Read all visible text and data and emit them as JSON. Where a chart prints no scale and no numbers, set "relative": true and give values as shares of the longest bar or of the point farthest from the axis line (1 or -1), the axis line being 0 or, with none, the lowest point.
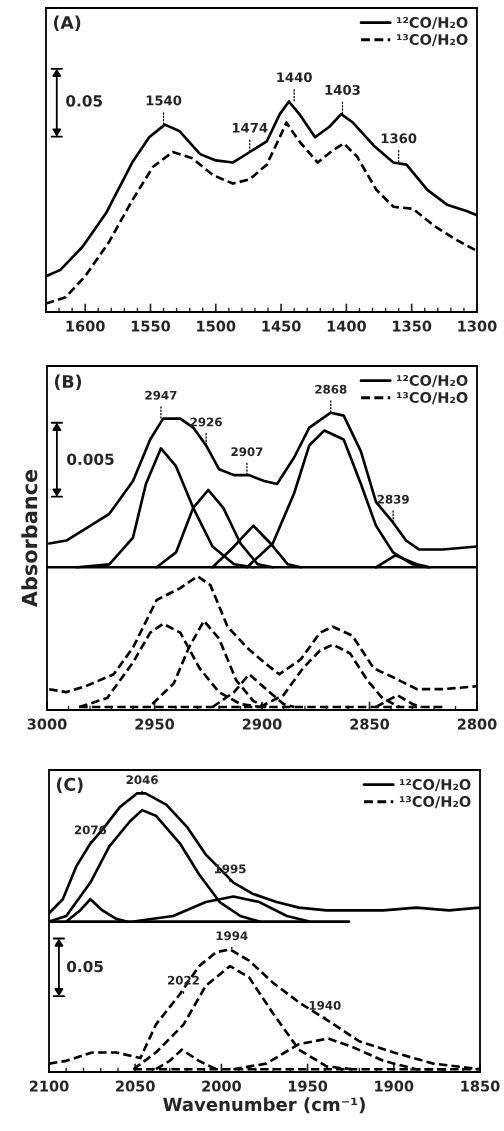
{
  "chart_data": [
    {
      "type": "line",
      "title": "(A)",
      "relative": true,
      "legend": "top right",
      "tick_labels": "x",
      "xlim": [
        1630,
        1300
      ],
      "xticks": [
        {
          "value": 1630,
          "label": null
        },
        {
          "value": 1620,
          "label": null
        },
        {
          "value": 1610,
          "label": null
        },
        1600,
        {
          "value": 1590,
          "label": null
        },
        {
          "value": 1580,
          "label": null
        },
        {
          "value": 1570,
          "label": null
        },
        {
          "value": 1560,
          "label": null
        },
        1550,
        {
          "value": 1540,
          "label": null
        },
        {
          "value": 1530,
          "label": null
        },
        {
          "value": 1520,
          "label": null
        },
        {
          "value": 1510,
          "label": null
        },
        1500,
        {
          "value": 1490,
          "label": null
        },
        {
          "value": 1480,
          "label": null
        },
        {
          "value": 1470,
          "label": null
        },
        {
          "value": 1460,
          "label": null
        },
        1450,
        {
          "value": 1440,
          "label": null
        },
        {
          "value": 1430,
          "label": null
        },
        {
          "value": 1420,
          "label": null
        },
        {
          "value": 1410,
          "label": null
        },
        1400,
        {
          "value": 1390,
          "label": null
        },
        {
          "value": 1380,
          "label": null
        },
        {
          "value": 1370,
          "label": null
        },
        {
          "value": 1360,
          "label": null
        },
        1350,
        {
          "value": 1340,
          "label": null
        },
        {
          "value": 1330,
          "label": null
        },
        {
          "value": 1320,
          "label": null
        },
        {
          "value": 1310,
          "label": null
        },
        1300
      ],
      "series": [
        {
          "name": "¹²CO/H₂O",
          "color": "#000000",
          "line_style": "solid",
          "x": [
            1630,
            1619,
            1602,
            1584,
            1564,
            1551,
            1539,
            1528,
            1512,
            1500,
            1487,
            1474,
            1461,
            1451,
            1444,
            1436,
            1424,
            1413,
            1404,
            1395,
            1379,
            1364,
            1354,
            1338,
            1323,
            1308,
            1300
          ],
          "values": [
            0.17,
            0.2,
            0.31,
            0.47,
            0.71,
            0.83,
            0.89,
            0.86,
            0.75,
            0.72,
            0.71,
            0.76,
            0.81,
            0.94,
            1.0,
            0.94,
            0.83,
            0.88,
            0.94,
            0.9,
            0.79,
            0.71,
            0.7,
            0.58,
            0.51,
            0.48,
            0.46
          ]
        },
        {
          "name": "¹³CO/H₂O",
          "color": "#000000",
          "line_style": "dashed",
          "x": [
            1630,
            1615,
            1600,
            1582,
            1564,
            1548,
            1533,
            1518,
            1502,
            1487,
            1474,
            1461,
            1451,
            1446,
            1436,
            1422,
            1410,
            1402,
            1392,
            1377,
            1364,
            1349,
            1333,
            1315,
            1300
          ],
          "values": [
            0.04,
            0.07,
            0.17,
            0.33,
            0.53,
            0.69,
            0.76,
            0.73,
            0.65,
            0.61,
            0.63,
            0.7,
            0.83,
            0.9,
            0.81,
            0.71,
            0.77,
            0.8,
            0.74,
            0.58,
            0.5,
            0.49,
            0.41,
            0.34,
            0.29
          ]
        }
      ],
      "annotations": [
        {
          "text": "1540",
          "x": 1540,
          "y": 0.89
        },
        {
          "text": "1474",
          "x": 1474,
          "y": 0.76
        },
        {
          "text": "1440",
          "x": 1440,
          "y": 1.0
        },
        {
          "text": "1403",
          "x": 1403,
          "y": 0.94
        },
        {
          "text": "1360",
          "x": 1360,
          "y": 0.71
        },
        "0.05"
      ]
    },
    {
      "type": "line",
      "title": "(B)",
      "ylabel": "Absorbance",
      "relative": true,
      "legend": "top right",
      "tick_labels": "x",
      "xlim": [
        3000,
        2800
      ],
      "xticks": [
        3000,
        {
          "value": 2990,
          "label": null
        },
        {
          "value": 2980,
          "label": null
        },
        {
          "value": 2970,
          "label": null
        },
        {
          "value": 2960,
          "label": null
        },
        2950,
        {
          "value": 2940,
          "label": null
        },
        {
          "value": 2930,
          "label": null
        },
        {
          "value": 2920,
          "label": null
        },
        {
          "value": 2910,
          "label": null
        },
        2900,
        {
          "value": 2890,
          "label": null
        },
        {
          "value": 2880,
          "label": null
        },
        {
          "value": 2870,
          "label": null
        },
        {
          "value": 2860,
          "label": null
        },
        2850,
        {
          "value": 2840,
          "label": null
        },
        {
          "value": 2830,
          "label": null
        },
        {
          "value": 2820,
          "label": null
        },
        {
          "value": 2810,
          "label": null
        },
        2800
      ],
      "series": [
        {
          "name": "¹²CO/H₂O",
          "color": "#000000",
          "line_style": "solid",
          "x": [
            2999,
            2991,
            2982,
            2971,
            2960,
            2952,
            2946,
            2938,
            2932,
            2926,
            2920,
            2913,
            2906,
            2899,
            2893,
            2885,
            2878,
            2868,
            2862,
            2854,
            2847,
            2839,
            2833,
            2827,
            2816,
            2800
          ],
          "values": [
            0.56,
            0.57,
            0.61,
            0.66,
            0.77,
            0.91,
            0.98,
            0.98,
            0.95,
            0.89,
            0.81,
            0.79,
            0.79,
            0.77,
            0.76,
            0.85,
            0.95,
            1.0,
            0.99,
            0.87,
            0.7,
            0.63,
            0.57,
            0.54,
            0.54,
            0.55
          ]
        },
        {
          "color": "#000000",
          "line_style": "solid",
          "x": [
            3000,
            2800
          ],
          "values": [
            0.48,
            0.48
          ]
        },
        {
          "color": "#000000",
          "line_style": "solid",
          "x": [
            2986,
            2971,
            2960,
            2954,
            2947,
            2940,
            2932,
            2923,
            2913,
            2904
          ],
          "values": [
            0.48,
            0.49,
            0.58,
            0.76,
            0.88,
            0.82,
            0.68,
            0.55,
            0.49,
            0.48
          ]
        },
        {
          "color": "#000000",
          "line_style": "solid",
          "x": [
            2949,
            2940,
            2932,
            2925,
            2918,
            2910,
            2902,
            2895
          ],
          "values": [
            0.48,
            0.53,
            0.68,
            0.74,
            0.68,
            0.56,
            0.49,
            0.48
          ]
        },
        {
          "color": "#000000",
          "line_style": "solid",
          "x": [
            2923,
            2913,
            2904,
            2896,
            2888,
            2882
          ],
          "values": [
            0.48,
            0.55,
            0.62,
            0.56,
            0.49,
            0.48
          ]
        },
        {
          "color": "#000000",
          "line_style": "solid",
          "x": [
            2907,
            2895,
            2885,
            2878,
            2871,
            2862,
            2854,
            2847,
            2839,
            2830,
            2823
          ],
          "values": [
            0.48,
            0.56,
            0.73,
            0.89,
            0.94,
            0.91,
            0.76,
            0.62,
            0.53,
            0.49,
            0.48
          ]
        },
        {
          "color": "#000000",
          "line_style": "solid",
          "x": [
            2847,
            2838,
            2828,
            2822
          ],
          "values": [
            0.48,
            0.52,
            0.49,
            0.48
          ]
        },
        {
          "name": "¹³CO/H₂O",
          "color": "#000000",
          "line_style": "dashed",
          "x": [
            2999,
            2991,
            2982,
            2969,
            2960,
            2949,
            2938,
            2930,
            2924,
            2916,
            2907,
            2899,
            2892,
            2882,
            2873,
            2867,
            2858,
            2848,
            2839,
            2828,
            2816,
            2800
          ],
          "values": [
            0.07,
            0.06,
            0.08,
            0.12,
            0.21,
            0.37,
            0.41,
            0.45,
            0.42,
            0.28,
            0.21,
            0.16,
            0.12,
            0.17,
            0.26,
            0.28,
            0.25,
            0.14,
            0.11,
            0.07,
            0.07,
            0.08
          ]
        },
        {
          "color": "#000000",
          "line_style": "dashed",
          "x": [
            2985,
            2816
          ],
          "values": [
            0.01,
            0.01
          ]
        },
        {
          "color": "#000000",
          "line_style": "dashed",
          "x": [
            2985,
            2972,
            2960,
            2952,
            2946,
            2938,
            2929,
            2920,
            2910,
            2901
          ],
          "values": [
            0.01,
            0.04,
            0.16,
            0.26,
            0.29,
            0.26,
            0.14,
            0.06,
            0.02,
            0.01
          ]
        },
        {
          "color": "#000000",
          "line_style": "dashed",
          "x": [
            2951,
            2941,
            2934,
            2927,
            2920,
            2912,
            2904,
            2898
          ],
          "values": [
            0.02,
            0.09,
            0.21,
            0.3,
            0.24,
            0.1,
            0.03,
            0.01
          ]
        },
        {
          "color": "#000000",
          "line_style": "dashed",
          "x": [
            2923,
            2913,
            2906,
            2898,
            2890,
            2885
          ],
          "values": [
            0.01,
            0.06,
            0.12,
            0.07,
            0.02,
            0.01
          ]
        },
        {
          "color": "#000000",
          "line_style": "dashed",
          "x": [
            2901,
            2890,
            2881,
            2873,
            2867,
            2859,
            2851,
            2844,
            2836
          ],
          "values": [
            0.01,
            0.05,
            0.14,
            0.2,
            0.22,
            0.19,
            0.1,
            0.04,
            0.01
          ]
        },
        {
          "color": "#000000",
          "line_style": "dashed",
          "x": [
            2847,
            2837,
            2830,
            2826
          ],
          "values": [
            0.01,
            0.05,
            0.02,
            0.01
          ]
        }
      ],
      "annotations": [
        {
          "text": "2947",
          "x": 2947,
          "y": 0.98
        },
        {
          "text": "2926",
          "x": 2926,
          "y": 0.89
        },
        {
          "text": "2907",
          "x": 2907,
          "y": 0.79
        },
        {
          "text": "2868",
          "x": 2868,
          "y": 1.0
        },
        {
          "text": "2839",
          "x": 2839,
          "y": 0.63
        },
        "0.005"
      ]
    },
    {
      "type": "line",
      "title": "(C)",
      "xlabel": "Wavenumber (cm⁻¹)",
      "relative": true,
      "legend": "top right",
      "tick_labels": "x",
      "xlim": [
        2100,
        1850
      ],
      "xticks": [
        2100,
        {
          "value": 2090,
          "label": null
        },
        {
          "value": 2080,
          "label": null
        },
        {
          "value": 2070,
          "label": null
        },
        {
          "value": 2060,
          "label": null
        },
        2050,
        {
          "value": 2040,
          "label": null
        },
        {
          "value": 2030,
          "label": null
        },
        {
          "value": 2020,
          "label": null
        },
        {
          "value": 2010,
          "label": null
        },
        2000,
        {
          "value": 1990,
          "label": null
        },
        {
          "value": 1980,
          "label": null
        },
        {
          "value": 1970,
          "label": null
        },
        {
          "value": 1960,
          "label": null
        },
        1950,
        {
          "value": 1940,
          "label": null
        },
        {
          "value": 1930,
          "label": null
        },
        {
          "value": 1920,
          "label": null
        },
        {
          "value": 1910,
          "label": null
        },
        1900,
        {
          "value": 1890,
          "label": null
        },
        {
          "value": 1880,
          "label": null
        },
        {
          "value": 1870,
          "label": null
        },
        {
          "value": 1860,
          "label": null
        },
        1850
      ],
      "series": [
        {
          "name": "¹²CO/H₂O",
          "color": "#000000",
          "line_style": "solid",
          "x": [
            2100,
            2092,
            2084,
            2076,
            2069,
            2059,
            2049,
            2044,
            2032,
            2020,
            2009,
            1993,
            1982,
            1968,
            1955,
            1939,
            1920,
            1906,
            1887,
            1868,
            1850
          ],
          "values": [
            0.57,
            0.62,
            0.74,
            0.82,
            0.87,
            0.95,
            1.0,
            1.0,
            0.96,
            0.88,
            0.78,
            0.68,
            0.64,
            0.61,
            0.59,
            0.58,
            0.58,
            0.58,
            0.59,
            0.58,
            0.59
          ]
        },
        {
          "color": "#000000",
          "line_style": "solid",
          "x": [
            2100,
            1926
          ],
          "values": [
            0.54,
            0.54
          ]
        },
        {
          "color": "#000000",
          "line_style": "solid",
          "x": [
            2100,
            2090,
            2076,
            2065,
            2053,
            2046,
            2038,
            2024,
            2013,
            2001,
            1989,
            1978
          ],
          "values": [
            0.54,
            0.56,
            0.68,
            0.81,
            0.9,
            0.94,
            0.92,
            0.82,
            0.71,
            0.61,
            0.56,
            0.54
          ]
        },
        {
          "color": "#000000",
          "line_style": "solid",
          "x": [
            2090,
            2082,
            2076,
            2069,
            2061,
            2055
          ],
          "values": [
            0.54,
            0.58,
            0.62,
            0.58,
            0.55,
            0.54
          ]
        },
        {
          "color": "#000000",
          "line_style": "solid",
          "x": [
            2051,
            2028,
            2009,
            1993,
            1978,
            1962,
            1949
          ],
          "values": [
            0.54,
            0.56,
            0.61,
            0.63,
            0.61,
            0.56,
            0.54
          ]
        },
        {
          "name": "¹³CO/H₂O",
          "color": "#000000",
          "line_style": "dashed",
          "x": [
            2100,
            2090,
            2075,
            2061,
            2047,
            2038,
            2024,
            2013,
            2003,
            1995,
            1984,
            1970,
            1955,
            1937,
            1920,
            1900,
            1877,
            1850
          ],
          "values": [
            0.03,
            0.04,
            0.07,
            0.07,
            0.05,
            0.17,
            0.28,
            0.38,
            0.43,
            0.44,
            0.4,
            0.32,
            0.25,
            0.18,
            0.11,
            0.07,
            0.03,
            0.01
          ]
        },
        {
          "color": "#000000",
          "line_style": "dashed",
          "x": [
            2051,
            1850
          ],
          "values": [
            0.01,
            0.01
          ]
        },
        {
          "color": "#000000",
          "line_style": "dashed",
          "x": [
            2051,
            2038,
            2022,
            2009,
            1995,
            1984,
            1970,
            1955,
            1939,
            1924
          ],
          "values": [
            0.01,
            0.07,
            0.17,
            0.31,
            0.38,
            0.34,
            0.21,
            0.08,
            0.02,
            0.01
          ]
        },
        {
          "color": "#000000",
          "line_style": "dashed",
          "x": [
            2038,
            2030,
            2023,
            2013,
            2003
          ],
          "values": [
            0.01,
            0.04,
            0.08,
            0.04,
            0.01
          ]
        },
        {
          "color": "#000000",
          "line_style": "dashed",
          "x": [
            1993,
            1974,
            1955,
            1938,
            1924,
            1906,
            1887,
            1868
          ],
          "values": [
            0.01,
            0.03,
            0.1,
            0.12,
            0.09,
            0.04,
            0.01,
            0.01
          ]
        }
      ],
      "annotations": [
        {
          "text": "2076",
          "x": 2076,
          "y": 0.82
        },
        {
          "text": "2046",
          "x": 2046,
          "y": 1.0
        },
        {
          "text": "1995",
          "x": 1995,
          "y": 0.68
        },
        {
          "text": "1994",
          "x": 1994,
          "y": 0.44
        },
        {
          "text": "2022",
          "x": 2022,
          "y": 0.28
        },
        {
          "text": "1940",
          "x": 1940,
          "y": 0.19
        },
        "0.05"
      ]
    }
  ]
}
